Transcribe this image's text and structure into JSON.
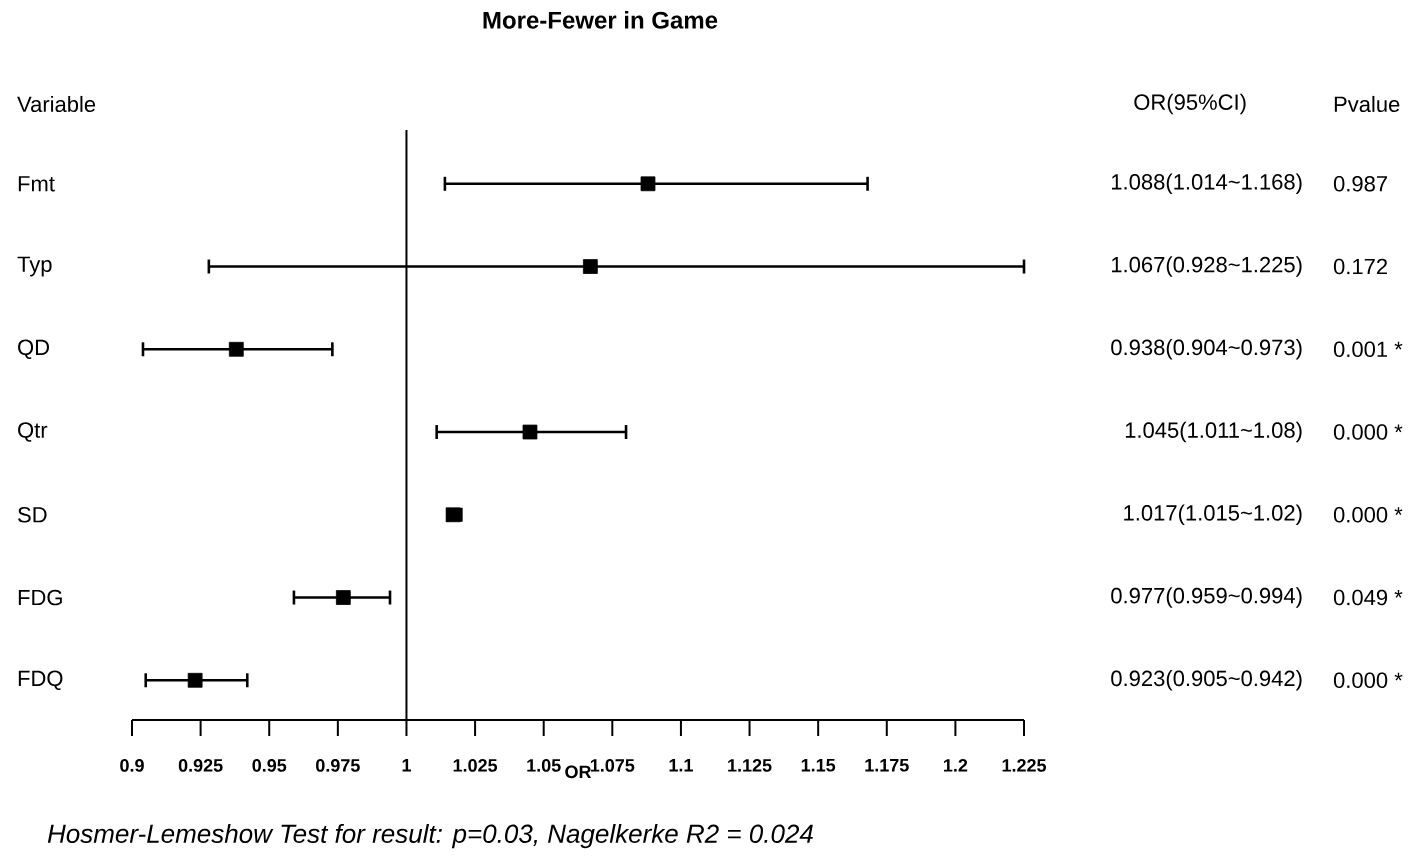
{
  "chart_data": {
    "type": "scatter",
    "orientation": "horizontal",
    "title": "More-Fewer in Game",
    "ylabel": "Variable",
    "xlabel": "OR",
    "categories": [
      "Fmt",
      "Typ",
      "QD",
      "Qtr",
      "SD",
      "FDG",
      "FDQ"
    ],
    "values": [
      1.088,
      1.067,
      0.938,
      1.045,
      1.017,
      0.977,
      0.923
    ],
    "errors": [
      [
        1.014,
        1.168
      ],
      [
        0.928,
        1.225
      ],
      [
        0.904,
        0.973
      ],
      [
        1.011,
        1.08
      ],
      [
        1.015,
        1.02
      ],
      [
        0.959,
        0.994
      ],
      [
        0.905,
        0.942
      ]
    ],
    "value_labels": [
      "1.088(1.014~1.168)",
      "1.067(0.928~1.225)",
      "0.938(0.904~0.973)",
      "1.045(1.011~1.08)",
      "1.017(1.015~1.02)",
      "0.977(0.959~0.994)",
      "0.923(0.905~0.942)"
    ],
    "color": "#000000",
    "marker": "square",
    "xlim": [
      0.9,
      1.225
    ],
    "xticks": [
      0.9,
      0.925,
      0.95,
      0.975,
      1,
      1.025,
      1.05,
      1.075,
      1.1,
      1.125,
      1.15,
      1.175,
      1.2,
      1.225
    ],
    "ref_lines": [
      {
        "axis": "x",
        "value": 1
      }
    ],
    "grid": false,
    "annotations": [
      "OR(95%CI)",
      "Pvalue",
      "0.987",
      "0.172",
      "0.001 *",
      "0.000 *",
      "0.000 *",
      "0.049 *",
      "0.000 *",
      "Hosmer-Lemeshow Test for result: p=0.03,  Nagelkerke R2 = 0.024"
    ]
  }
}
